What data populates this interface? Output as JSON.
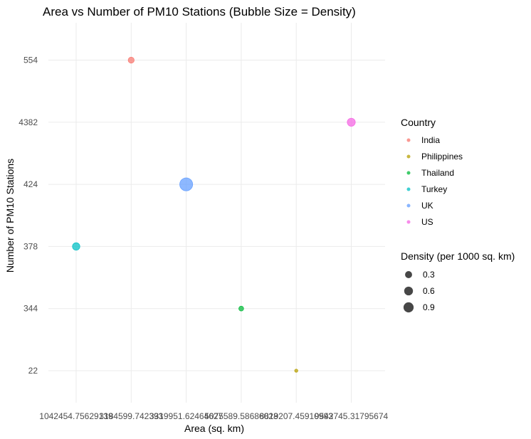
{
  "chart_data": {
    "type": "scatter",
    "title": "Area vs Number of PM10 Stations (Bubble Size = Density)",
    "xlabel": "Area (sq. km)",
    "ylabel": "Number of PM10 Stations",
    "x_categories": [
      "1042454.75629139",
      "3184599.742393",
      "3319951.62464627",
      "5075589.58686028",
      "8819207.45910993",
      "9542745.31795674"
    ],
    "y_categories": [
      "22",
      "344",
      "378",
      "424",
      "4382",
      "554"
    ],
    "points": [
      {
        "country": "India",
        "x": "3184599.742393",
        "y": "554",
        "density": 0.17
      },
      {
        "country": "Philippines",
        "x": "8819207.45910993",
        "y": "22",
        "density": 0.002
      },
      {
        "country": "Thailand",
        "x": "5075589.58686028",
        "y": "344",
        "density": 0.07
      },
      {
        "country": "Turkey",
        "x": "1042454.75629139",
        "y": "378",
        "density": 0.36
      },
      {
        "country": "UK",
        "x": "3319951.62464627",
        "y": "424",
        "density": 1.74
      },
      {
        "country": "US",
        "x": "9542745.31795674",
        "y": "4382",
        "density": 0.46
      }
    ],
    "grid": true,
    "legend_placement": "right",
    "color_legend": {
      "title": "Country",
      "entries": [
        {
          "label": "India",
          "color": "#F8766D"
        },
        {
          "label": "Philippines",
          "color": "#B79F00"
        },
        {
          "label": "Thailand",
          "color": "#00BA38"
        },
        {
          "label": "Turkey",
          "color": "#00BFC4"
        },
        {
          "label": "UK",
          "color": "#619CFF"
        },
        {
          "label": "US",
          "color": "#F564E3"
        }
      ]
    },
    "size_legend": {
      "title": "Density (per 1000 sq. km)",
      "entries": [
        {
          "label": "0.3",
          "value": 0.3
        },
        {
          "label": "0.6",
          "value": 0.6
        },
        {
          "label": "0.9",
          "value": 0.9
        }
      ]
    }
  }
}
